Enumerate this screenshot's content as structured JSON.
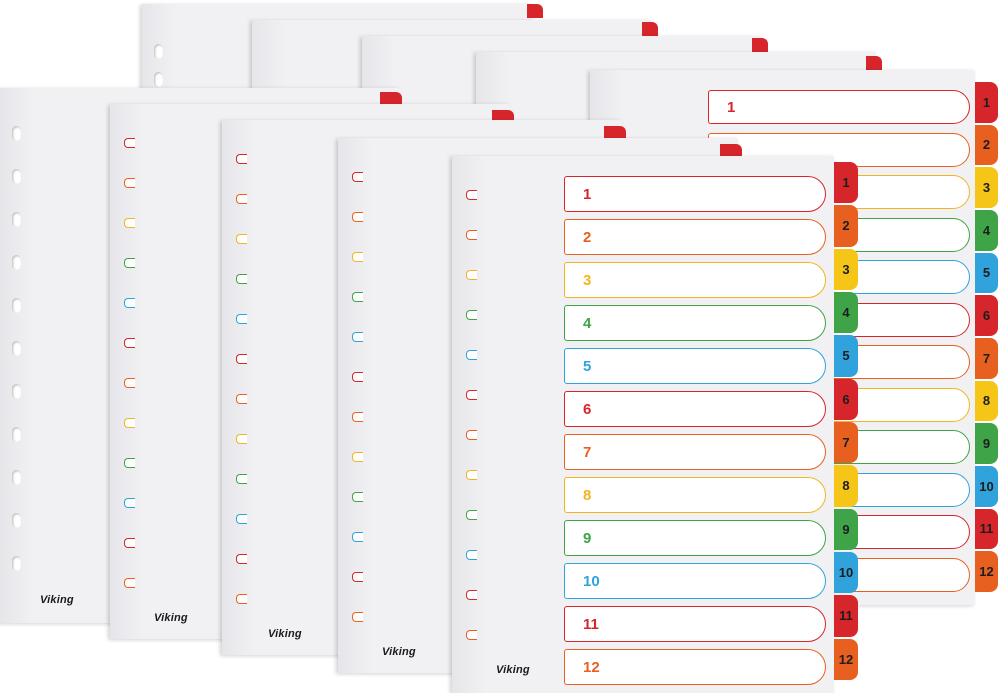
{
  "product": {
    "brand": "Viking",
    "tab_numbers": [
      "1",
      "2",
      "3",
      "4",
      "5",
      "6",
      "7",
      "8",
      "9",
      "10",
      "11",
      "12"
    ],
    "tab_colors": [
      "#d7262b",
      "#e8601f",
      "#f5c518",
      "#3ea447",
      "#31a3dc",
      "#d7262b",
      "#e8601f",
      "#f5c518",
      "#3ea447",
      "#31a3dc",
      "#d7262b",
      "#e8601f"
    ],
    "outline_colors": [
      "#d7262b",
      "#e8601f",
      "#f3b51f",
      "#3ea447",
      "#31a3dc",
      "#d7262b",
      "#e8601f",
      "#f3b51f",
      "#3ea447",
      "#31a3dc",
      "#d7262b",
      "#e8601f"
    ]
  }
}
